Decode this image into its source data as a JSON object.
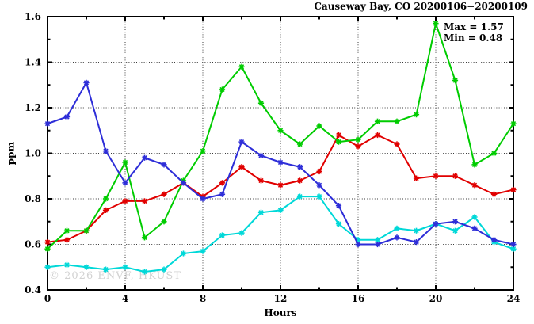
{
  "title": "Causeway Bay, CO 20200106−20200109",
  "annotation": {
    "max": "Max = 1.57",
    "min": "Min = 0.48"
  },
  "axes": {
    "x_label": "Hours",
    "y_label": "ppm"
  },
  "watermark": "© 2026 ENVF, HKUST",
  "chart_data": {
    "type": "line",
    "title": "Causeway Bay, CO 20200106−20200109",
    "xlabel": "Hours",
    "ylabel": "ppm",
    "xlim": [
      0,
      24
    ],
    "ylim": [
      0.4,
      1.6
    ],
    "x_major_ticks": [
      0,
      4,
      8,
      12,
      16,
      20,
      24
    ],
    "x_minor_ticks": [
      2,
      6,
      10,
      14,
      18,
      22
    ],
    "y_major_ticks": [
      0.4,
      0.6,
      0.8,
      1.0,
      1.2,
      1.4,
      1.6
    ],
    "y_minor_ticks": [
      0.5,
      0.7,
      0.9,
      1.1,
      1.3,
      1.5
    ],
    "x_grid": [
      4,
      8,
      12,
      16,
      20
    ],
    "y_grid": [
      0.6,
      0.8,
      1.0,
      1.2,
      1.4
    ],
    "grid_style": "dotted",
    "legend": "none",
    "marker": "asterisk",
    "frame_color": "#000000",
    "grid_color": "#3a3a3a",
    "annotations": {
      "max_label": "Max = 1.57",
      "min_label": "Min = 0.48"
    },
    "x": [
      0,
      1,
      2,
      3,
      4,
      5,
      6,
      7,
      8,
      9,
      10,
      11,
      12,
      13,
      14,
      15,
      16,
      17,
      18,
      19,
      20,
      21,
      22,
      23,
      24
    ],
    "series": [
      {
        "name": "red",
        "color": "#e10000",
        "values": [
          0.61,
          0.62,
          0.66,
          0.75,
          0.79,
          0.79,
          0.82,
          0.87,
          0.81,
          0.87,
          0.94,
          0.88,
          0.86,
          0.88,
          0.92,
          1.08,
          1.03,
          1.08,
          1.04,
          0.89,
          0.9,
          0.9,
          0.86,
          0.82,
          0.84
        ]
      },
      {
        "name": "green",
        "color": "#00cc00",
        "values": [
          0.58,
          0.66,
          0.66,
          0.8,
          0.96,
          0.63,
          0.7,
          0.88,
          1.01,
          1.28,
          1.38,
          1.22,
          1.1,
          1.04,
          1.12,
          1.05,
          1.06,
          1.14,
          1.14,
          1.17,
          1.57,
          1.32,
          0.95,
          1.0,
          1.13
        ]
      },
      {
        "name": "cyan",
        "color": "#00d8d8",
        "values": [
          0.5,
          0.51,
          0.5,
          0.49,
          0.5,
          0.48,
          0.49,
          0.56,
          0.57,
          0.64,
          0.65,
          0.74,
          0.75,
          0.81,
          0.81,
          0.69,
          0.62,
          0.62,
          0.67,
          0.66,
          0.69,
          0.66,
          0.72,
          0.61,
          0.58
        ]
      },
      {
        "name": "blue",
        "color": "#2e2ed8",
        "values": [
          1.13,
          1.16,
          1.31,
          1.01,
          0.87,
          0.98,
          0.95,
          0.87,
          0.8,
          0.82,
          1.05,
          0.99,
          0.96,
          0.94,
          0.86,
          0.77,
          0.6,
          0.6,
          0.63,
          0.61,
          0.69,
          0.7,
          0.67,
          0.62,
          0.6
        ]
      }
    ]
  }
}
